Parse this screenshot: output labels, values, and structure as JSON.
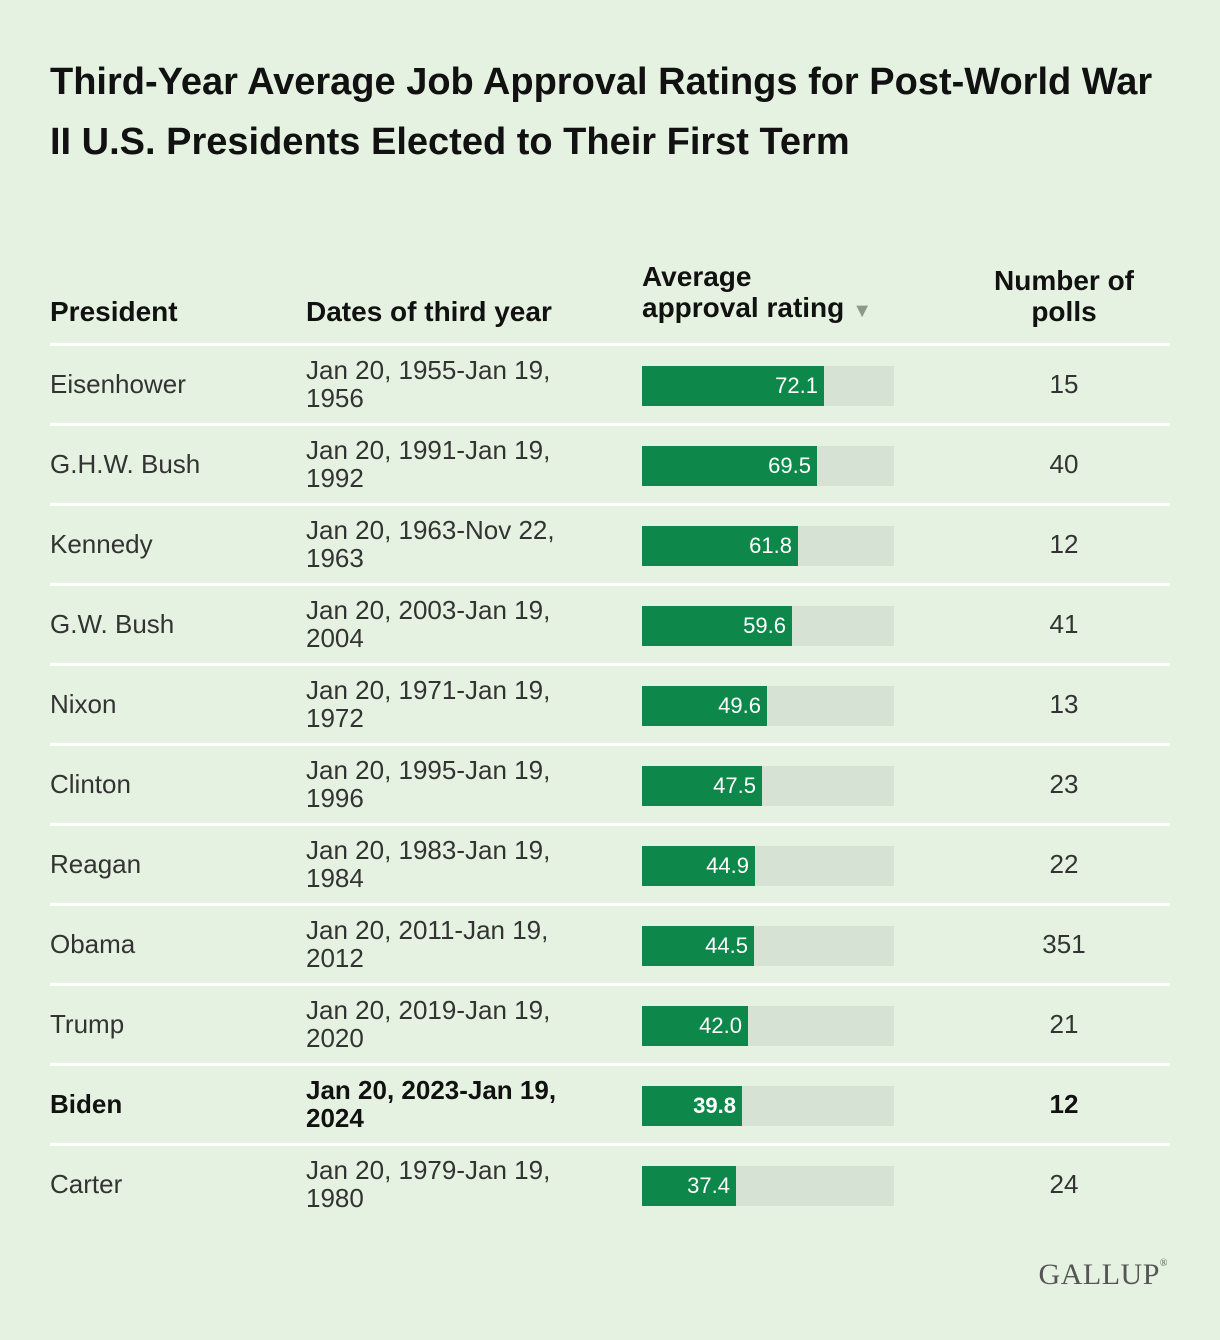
{
  "title": "Third-Year Average Job Approval Ratings for Post-World War II U.S. Presidents Elected to Their First Term",
  "headers": {
    "president": "President",
    "dates": "Dates of third year",
    "rating_line1": "Average",
    "rating_line2": "approval rating",
    "polls_line1": "Number of",
    "polls_line2": "polls"
  },
  "sort_icon": "▼",
  "colors": {
    "background": "#e5f2e1",
    "bar": "#0e874a",
    "track": "#d6e2d3"
  },
  "logo": "GALLUP",
  "logo_mark": "®",
  "chart_data": {
    "type": "table",
    "title": "Third-Year Average Job Approval Ratings for Post-World War II U.S. Presidents Elected to Their First Term",
    "columns": [
      "President",
      "Dates of third year",
      "Average approval rating",
      "Number of polls"
    ],
    "bar_scale_max": 100,
    "rows": [
      {
        "president": "Eisenhower",
        "dates": "Jan 20, 1955-Jan 19, 1956",
        "rating": 72.1,
        "rating_label": "72.1",
        "polls": "15"
      },
      {
        "president": "G.H.W. Bush",
        "dates": "Jan 20, 1991-Jan 19, 1992",
        "rating": 69.5,
        "rating_label": "69.5",
        "polls": "40"
      },
      {
        "president": "Kennedy",
        "dates": "Jan 20, 1963-Nov 22, 1963",
        "rating": 61.8,
        "rating_label": "61.8",
        "polls": "12"
      },
      {
        "president": "G.W. Bush",
        "dates": "Jan 20, 2003-Jan 19, 2004",
        "rating": 59.6,
        "rating_label": "59.6",
        "polls": "41"
      },
      {
        "president": "Nixon",
        "dates": "Jan 20, 1971-Jan 19, 1972",
        "rating": 49.6,
        "rating_label": "49.6",
        "polls": "13"
      },
      {
        "president": "Clinton",
        "dates": "Jan 20, 1995-Jan 19, 1996",
        "rating": 47.5,
        "rating_label": "47.5",
        "polls": "23"
      },
      {
        "president": "Reagan",
        "dates": "Jan 20, 1983-Jan 19, 1984",
        "rating": 44.9,
        "rating_label": "44.9",
        "polls": "22"
      },
      {
        "president": "Obama",
        "dates": "Jan 20, 2011-Jan 19, 2012",
        "rating": 44.5,
        "rating_label": "44.5",
        "polls": "351"
      },
      {
        "president": "Trump",
        "dates": "Jan 20, 2019-Jan 19, 2020",
        "rating": 42.0,
        "rating_label": "42.0",
        "polls": "21"
      },
      {
        "president": "Biden",
        "dates": "Jan 20, 2023-Jan 19, 2024",
        "rating": 39.8,
        "rating_label": "39.8",
        "polls": "12",
        "highlight": true
      },
      {
        "president": "Carter",
        "dates": "Jan 20, 1979-Jan 19, 1980",
        "rating": 37.4,
        "rating_label": "37.4",
        "polls": "24"
      }
    ]
  }
}
